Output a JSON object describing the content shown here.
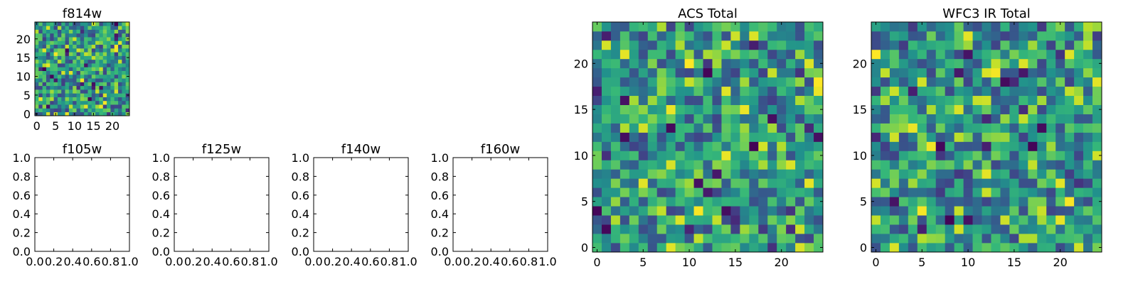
{
  "chart_data": [
    {
      "type": "heatmap",
      "title": "f814w",
      "grid_size": [
        25,
        25
      ],
      "xlim": [
        -0.5,
        24.5
      ],
      "ylim": [
        -0.5,
        24.5
      ],
      "xticks": [
        "0",
        "5",
        "10",
        "15",
        "20"
      ],
      "yticks": [
        "0",
        "5",
        "10",
        "15",
        "20"
      ],
      "colormap": "viridis",
      "values": "25x25 random pixel field (values 0–1), rendered by script",
      "seed": 11
    },
    {
      "type": "line",
      "title": "f105w",
      "xlim": [
        0,
        1
      ],
      "ylim": [
        0,
        1
      ],
      "xticks": [
        "0.0",
        "0.2",
        "0.4",
        "0.6",
        "0.8",
        "1.0"
      ],
      "yticks": [
        "0.0",
        "0.2",
        "0.4",
        "0.6",
        "0.8",
        "1.0"
      ],
      "series": []
    },
    {
      "type": "line",
      "title": "f125w",
      "xlim": [
        0,
        1
      ],
      "ylim": [
        0,
        1
      ],
      "xticks": [
        "0.0",
        "0.2",
        "0.4",
        "0.6",
        "0.8",
        "1.0"
      ],
      "yticks": [
        "0.0",
        "0.2",
        "0.4",
        "0.6",
        "0.8",
        "1.0"
      ],
      "series": []
    },
    {
      "type": "line",
      "title": "f140w",
      "xlim": [
        0,
        1
      ],
      "ylim": [
        0,
        1
      ],
      "xticks": [
        "0.0",
        "0.2",
        "0.4",
        "0.6",
        "0.8",
        "1.0"
      ],
      "yticks": [
        "0.0",
        "0.2",
        "0.4",
        "0.6",
        "0.8",
        "1.0"
      ],
      "series": []
    },
    {
      "type": "line",
      "title": "f160w",
      "xlim": [
        0,
        1
      ],
      "ylim": [
        0,
        1
      ],
      "xticks": [
        "0.0",
        "0.2",
        "0.4",
        "0.6",
        "0.8",
        "1.0"
      ],
      "yticks": [
        "0.0",
        "0.2",
        "0.4",
        "0.6",
        "0.8",
        "1.0"
      ],
      "series": []
    },
    {
      "type": "heatmap",
      "title": "ACS Total",
      "grid_size": [
        25,
        25
      ],
      "xlim": [
        -0.5,
        24.5
      ],
      "ylim": [
        -0.5,
        24.5
      ],
      "xticks": [
        "0",
        "5",
        "10",
        "15",
        "20"
      ],
      "yticks": [
        "0",
        "5",
        "10",
        "15",
        "20"
      ],
      "colormap": "viridis",
      "values": "25x25 random pixel field (values 0–1), rendered by script",
      "seed": 29
    },
    {
      "type": "heatmap",
      "title": "WFC3 IR Total",
      "grid_size": [
        25,
        25
      ],
      "xlim": [
        -0.5,
        24.5
      ],
      "ylim": [
        -0.5,
        24.5
      ],
      "xticks": [
        "0",
        "5",
        "10",
        "15",
        "20"
      ],
      "yticks": [
        "0",
        "5",
        "10",
        "15",
        "20"
      ],
      "colormap": "viridis",
      "values": "25x25 random pixel field (values 0–1), rendered by script",
      "seed": 47
    }
  ]
}
